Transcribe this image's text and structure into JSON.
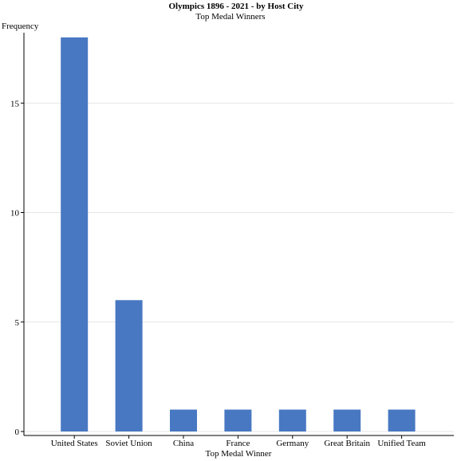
{
  "chart_data": {
    "type": "bar",
    "title": "Olympics 1896 - 2021 - by Host City",
    "subtitle": "Top Medal Winners",
    "xlabel": "Top Medal Winner",
    "ylabel": "Frequency",
    "categories": [
      "United States",
      "Soviet Union",
      "China",
      "France",
      "Germany",
      "Great Britain",
      "Unified Team"
    ],
    "values": [
      18,
      6,
      1,
      1,
      1,
      1,
      1
    ],
    "ylim": [
      0,
      18.5
    ],
    "yticks": [
      0,
      5,
      10,
      15
    ],
    "grid": true,
    "colors": {
      "bar": "#4878c2",
      "grid": "#e6e6e6",
      "axis": "#000000"
    }
  }
}
